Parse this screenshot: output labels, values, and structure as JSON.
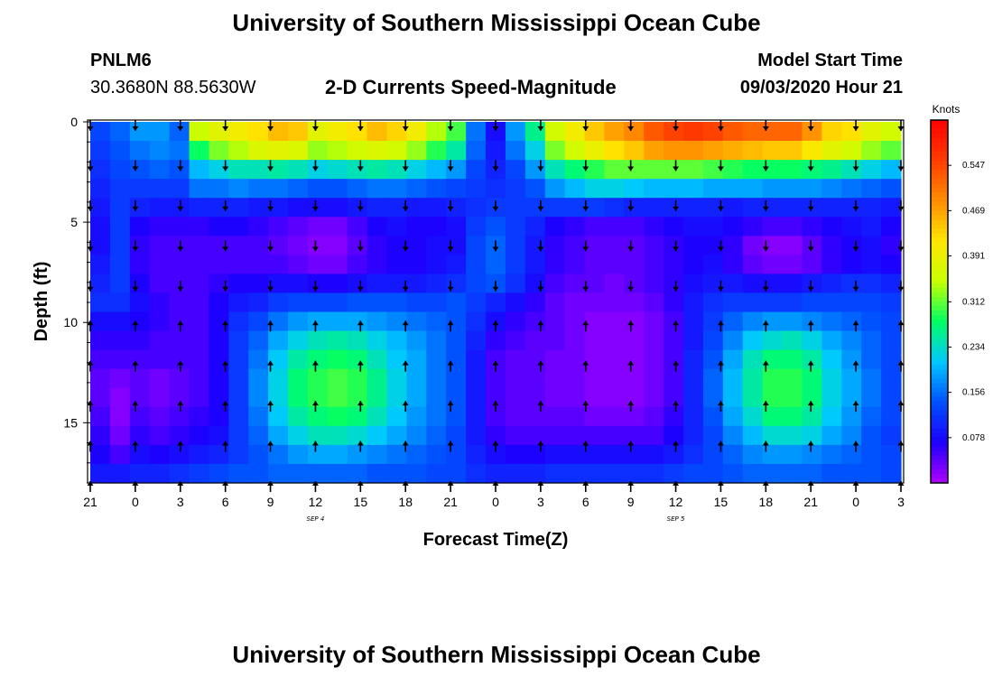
{
  "header": {
    "title": "University of Southern Mississippi Ocean Cube",
    "station": "PNLM6",
    "coords": "30.3680N 88.5630W",
    "subtitle": "2-D Currents Speed-Magnitude",
    "model_label": "Model Start Time",
    "model_time": "09/03/2020 Hour 21"
  },
  "footer": {
    "title": "University of Southern Mississippi Ocean Cube"
  },
  "chart_data": {
    "type": "heatmap",
    "title": "2-D Currents Speed-Magnitude",
    "xlabel": "Forecast Time(Z)",
    "ylabel": "Depth (ft)",
    "x_tick_labels": [
      "21",
      "0",
      "3",
      "6",
      "9",
      "12",
      "15",
      "18",
      "21",
      "0",
      "3",
      "6",
      "9",
      "12",
      "15",
      "18",
      "21",
      "0",
      "3"
    ],
    "x_hours": [
      0,
      3,
      6,
      9,
      12,
      15,
      18,
      21,
      24,
      27,
      30,
      33,
      36,
      39,
      42,
      45,
      48,
      51,
      54
    ],
    "x_day_labels": [
      {
        "text": "SEP 4",
        "hour": 15
      },
      {
        "text": "SEP 5",
        "hour": 39
      }
    ],
    "y_ticks": [
      0,
      5,
      10,
      15
    ],
    "ylim": [
      0,
      18
    ],
    "depths": [
      0,
      1,
      2,
      3,
      4,
      5,
      6,
      7,
      8,
      9,
      10,
      11,
      12,
      13,
      14,
      15,
      16,
      17,
      18
    ],
    "colorbar": {
      "label": "Knots",
      "ticks": [
        0.078,
        0.156,
        0.234,
        0.312,
        0.391,
        0.469,
        0.547
      ],
      "range": [
        0,
        0.625
      ],
      "colors": [
        "#b000ff",
        "#1c00ff",
        "#0050ff",
        "#00c8ff",
        "#00ff64",
        "#c8ff00",
        "#ffe600",
        "#ff8c00",
        "#ff3c00",
        "#ff0000"
      ]
    },
    "speed_knots": [
      [
        0.13,
        0.15,
        0.18,
        0.18,
        0.15,
        0.35,
        0.38,
        0.4,
        0.42,
        0.45,
        0.44,
        0.38,
        0.4,
        0.42,
        0.45,
        0.43,
        0.4,
        0.34,
        0.3,
        0.16,
        0.08,
        0.18,
        0.26,
        0.36,
        0.4,
        0.44,
        0.47,
        0.49,
        0.53,
        0.55,
        0.56,
        0.55,
        0.53,
        0.52,
        0.52,
        0.52,
        0.48,
        0.43,
        0.42,
        0.38,
        0.36
      ],
      [
        0.12,
        0.14,
        0.16,
        0.17,
        0.16,
        0.28,
        0.32,
        0.34,
        0.37,
        0.38,
        0.37,
        0.33,
        0.34,
        0.36,
        0.37,
        0.36,
        0.33,
        0.29,
        0.25,
        0.15,
        0.09,
        0.16,
        0.22,
        0.32,
        0.36,
        0.39,
        0.42,
        0.44,
        0.47,
        0.48,
        0.48,
        0.47,
        0.46,
        0.45,
        0.44,
        0.44,
        0.41,
        0.38,
        0.36,
        0.33,
        0.31
      ],
      [
        0.11,
        0.13,
        0.14,
        0.15,
        0.14,
        0.2,
        0.22,
        0.24,
        0.24,
        0.25,
        0.24,
        0.22,
        0.23,
        0.24,
        0.25,
        0.24,
        0.22,
        0.2,
        0.18,
        0.13,
        0.1,
        0.13,
        0.18,
        0.24,
        0.27,
        0.29,
        0.31,
        0.31,
        0.31,
        0.31,
        0.31,
        0.3,
        0.29,
        0.28,
        0.28,
        0.28,
        0.27,
        0.26,
        0.24,
        0.22,
        0.2
      ],
      [
        0.1,
        0.12,
        0.12,
        0.12,
        0.12,
        0.16,
        0.16,
        0.17,
        0.16,
        0.16,
        0.15,
        0.14,
        0.14,
        0.15,
        0.16,
        0.16,
        0.15,
        0.14,
        0.13,
        0.12,
        0.11,
        0.12,
        0.14,
        0.18,
        0.2,
        0.22,
        0.22,
        0.21,
        0.2,
        0.2,
        0.2,
        0.19,
        0.19,
        0.19,
        0.18,
        0.18,
        0.18,
        0.17,
        0.16,
        0.15,
        0.14
      ],
      [
        0.09,
        0.12,
        0.1,
        0.09,
        0.09,
        0.1,
        0.1,
        0.1,
        0.09,
        0.09,
        0.08,
        0.08,
        0.08,
        0.09,
        0.1,
        0.1,
        0.09,
        0.09,
        0.1,
        0.11,
        0.12,
        0.12,
        0.12,
        0.12,
        0.12,
        0.12,
        0.11,
        0.1,
        0.1,
        0.1,
        0.1,
        0.1,
        0.09,
        0.1,
        0.1,
        0.1,
        0.1,
        0.1,
        0.1,
        0.1,
        0.09
      ],
      [
        0.08,
        0.12,
        0.07,
        0.06,
        0.06,
        0.06,
        0.07,
        0.07,
        0.06,
        0.05,
        0.04,
        0.03,
        0.03,
        0.05,
        0.07,
        0.08,
        0.07,
        0.07,
        0.08,
        0.12,
        0.14,
        0.12,
        0.1,
        0.07,
        0.06,
        0.05,
        0.05,
        0.05,
        0.06,
        0.07,
        0.08,
        0.08,
        0.07,
        0.06,
        0.05,
        0.05,
        0.06,
        0.07,
        0.08,
        0.09,
        0.07
      ],
      [
        0.08,
        0.12,
        0.06,
        0.05,
        0.05,
        0.05,
        0.05,
        0.05,
        0.05,
        0.04,
        0.03,
        0.02,
        0.02,
        0.04,
        0.06,
        0.07,
        0.07,
        0.08,
        0.08,
        0.13,
        0.15,
        0.12,
        0.09,
        0.06,
        0.05,
        0.04,
        0.04,
        0.04,
        0.05,
        0.06,
        0.07,
        0.07,
        0.06,
        0.03,
        0.02,
        0.02,
        0.04,
        0.06,
        0.07,
        0.08,
        0.06
      ],
      [
        0.09,
        0.12,
        0.06,
        0.05,
        0.05,
        0.05,
        0.05,
        0.05,
        0.05,
        0.05,
        0.04,
        0.03,
        0.03,
        0.05,
        0.06,
        0.07,
        0.07,
        0.08,
        0.09,
        0.13,
        0.15,
        0.12,
        0.09,
        0.06,
        0.05,
        0.04,
        0.04,
        0.04,
        0.05,
        0.06,
        0.07,
        0.08,
        0.06,
        0.04,
        0.03,
        0.03,
        0.04,
        0.06,
        0.07,
        0.08,
        0.07
      ],
      [
        0.1,
        0.12,
        0.07,
        0.05,
        0.05,
        0.05,
        0.06,
        0.07,
        0.07,
        0.08,
        0.08,
        0.07,
        0.07,
        0.08,
        0.09,
        0.09,
        0.09,
        0.1,
        0.11,
        0.13,
        0.14,
        0.11,
        0.08,
        0.05,
        0.04,
        0.04,
        0.03,
        0.04,
        0.05,
        0.06,
        0.08,
        0.09,
        0.09,
        0.08,
        0.08,
        0.08,
        0.09,
        0.1,
        0.11,
        0.11,
        0.1
      ],
      [
        0.11,
        0.11,
        0.08,
        0.06,
        0.05,
        0.05,
        0.07,
        0.09,
        0.1,
        0.12,
        0.13,
        0.13,
        0.13,
        0.14,
        0.14,
        0.14,
        0.13,
        0.13,
        0.14,
        0.12,
        0.1,
        0.08,
        0.06,
        0.04,
        0.03,
        0.03,
        0.03,
        0.03,
        0.04,
        0.06,
        0.09,
        0.11,
        0.12,
        0.12,
        0.12,
        0.12,
        0.13,
        0.13,
        0.13,
        0.13,
        0.12
      ],
      [
        0.08,
        0.08,
        0.07,
        0.06,
        0.05,
        0.05,
        0.07,
        0.11,
        0.13,
        0.16,
        0.18,
        0.19,
        0.19,
        0.19,
        0.18,
        0.17,
        0.16,
        0.15,
        0.14,
        0.11,
        0.08,
        0.06,
        0.05,
        0.04,
        0.03,
        0.02,
        0.02,
        0.02,
        0.03,
        0.05,
        0.09,
        0.12,
        0.15,
        0.17,
        0.18,
        0.18,
        0.17,
        0.16,
        0.15,
        0.14,
        0.13
      ],
      [
        0.06,
        0.06,
        0.06,
        0.05,
        0.05,
        0.05,
        0.07,
        0.12,
        0.15,
        0.19,
        0.22,
        0.24,
        0.25,
        0.24,
        0.22,
        0.2,
        0.18,
        0.16,
        0.14,
        0.1,
        0.06,
        0.05,
        0.04,
        0.04,
        0.03,
        0.02,
        0.02,
        0.02,
        0.03,
        0.05,
        0.09,
        0.13,
        0.17,
        0.21,
        0.23,
        0.24,
        0.22,
        0.19,
        0.17,
        0.15,
        0.13
      ],
      [
        0.05,
        0.05,
        0.05,
        0.05,
        0.05,
        0.05,
        0.07,
        0.12,
        0.16,
        0.21,
        0.25,
        0.27,
        0.28,
        0.27,
        0.24,
        0.21,
        0.19,
        0.16,
        0.14,
        0.09,
        0.05,
        0.04,
        0.04,
        0.03,
        0.03,
        0.02,
        0.02,
        0.02,
        0.03,
        0.05,
        0.1,
        0.14,
        0.19,
        0.24,
        0.27,
        0.27,
        0.25,
        0.21,
        0.18,
        0.15,
        0.13
      ],
      [
        0.04,
        0.03,
        0.04,
        0.03,
        0.04,
        0.05,
        0.07,
        0.12,
        0.17,
        0.22,
        0.27,
        0.29,
        0.3,
        0.29,
        0.26,
        0.22,
        0.19,
        0.16,
        0.14,
        0.09,
        0.05,
        0.04,
        0.04,
        0.03,
        0.03,
        0.02,
        0.02,
        0.02,
        0.03,
        0.05,
        0.1,
        0.15,
        0.2,
        0.25,
        0.29,
        0.29,
        0.27,
        0.22,
        0.19,
        0.16,
        0.13
      ],
      [
        0.04,
        0.02,
        0.04,
        0.03,
        0.04,
        0.05,
        0.07,
        0.12,
        0.17,
        0.22,
        0.27,
        0.29,
        0.3,
        0.29,
        0.26,
        0.22,
        0.19,
        0.16,
        0.14,
        0.09,
        0.05,
        0.04,
        0.04,
        0.03,
        0.03,
        0.02,
        0.02,
        0.02,
        0.03,
        0.05,
        0.1,
        0.15,
        0.2,
        0.25,
        0.29,
        0.29,
        0.27,
        0.22,
        0.19,
        0.16,
        0.13
      ],
      [
        0.05,
        0.02,
        0.05,
        0.04,
        0.05,
        0.06,
        0.07,
        0.12,
        0.16,
        0.21,
        0.25,
        0.27,
        0.28,
        0.27,
        0.24,
        0.21,
        0.18,
        0.16,
        0.14,
        0.09,
        0.05,
        0.04,
        0.04,
        0.04,
        0.04,
        0.03,
        0.03,
        0.03,
        0.04,
        0.06,
        0.1,
        0.14,
        0.19,
        0.23,
        0.27,
        0.27,
        0.25,
        0.21,
        0.18,
        0.15,
        0.13
      ],
      [
        0.06,
        0.03,
        0.06,
        0.05,
        0.06,
        0.07,
        0.08,
        0.12,
        0.15,
        0.19,
        0.22,
        0.24,
        0.24,
        0.23,
        0.21,
        0.19,
        0.17,
        0.15,
        0.13,
        0.09,
        0.06,
        0.05,
        0.05,
        0.05,
        0.05,
        0.05,
        0.05,
        0.05,
        0.05,
        0.07,
        0.1,
        0.13,
        0.17,
        0.2,
        0.23,
        0.23,
        0.22,
        0.19,
        0.17,
        0.14,
        0.12
      ],
      [
        0.07,
        0.05,
        0.08,
        0.07,
        0.08,
        0.09,
        0.1,
        0.12,
        0.14,
        0.16,
        0.18,
        0.19,
        0.19,
        0.18,
        0.17,
        0.16,
        0.15,
        0.14,
        0.13,
        0.1,
        0.08,
        0.07,
        0.07,
        0.08,
        0.08,
        0.08,
        0.08,
        0.08,
        0.08,
        0.09,
        0.11,
        0.13,
        0.15,
        0.17,
        0.18,
        0.18,
        0.17,
        0.16,
        0.15,
        0.14,
        0.13
      ],
      [
        0.09,
        0.09,
        0.1,
        0.1,
        0.11,
        0.12,
        0.13,
        0.14,
        0.14,
        0.15,
        0.15,
        0.15,
        0.15,
        0.15,
        0.14,
        0.14,
        0.14,
        0.13,
        0.13,
        0.11,
        0.1,
        0.1,
        0.1,
        0.11,
        0.11,
        0.11,
        0.11,
        0.11,
        0.11,
        0.12,
        0.13,
        0.13,
        0.14,
        0.15,
        0.15,
        0.15,
        0.15,
        0.14,
        0.14,
        0.14,
        0.13
      ]
    ]
  }
}
